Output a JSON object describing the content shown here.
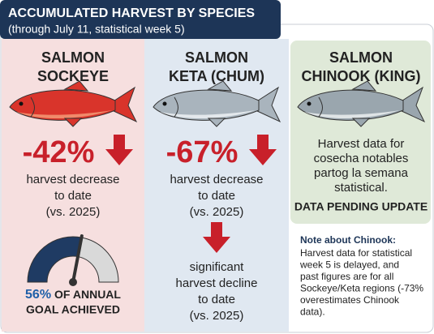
{
  "header": {
    "title": "ACCUMULATED HARVEST BY SPECIES",
    "subtitle": "(through July 11, statistical week 5)"
  },
  "columns": [
    {
      "title": [
        "SALMON",
        "SOCKEYE"
      ],
      "change": "-42%",
      "description": [
        "harvest decrease",
        "to date"
      ],
      "comparison": "(vs. 2025)",
      "gauge": {
        "value": 56,
        "label": "56%",
        "caption": [
          "OF ANNUAL",
          "GOAL ACHIEVED"
        ]
      }
    },
    {
      "title": [
        "SALMON",
        "KETA (CHUM)"
      ],
      "change": "-67%",
      "description": [
        "harvest decrease",
        "to date"
      ],
      "comparison": "(vs. 2025)",
      "detail": [
        "significant",
        "harvest decline",
        "to date"
      ],
      "detail_comparison": "(vs. 2025)"
    },
    {
      "title": [
        "SALMON",
        "CHINOOK (KING)"
      ],
      "message": [
        "Harvest data for",
        "cosecha notables",
        "partog la semana",
        "statistical."
      ],
      "status": "DATA PENDING UPDATE",
      "note_title": "Note about Chinook:",
      "note": [
        "Harvest data for statistical",
        "week 5 is delayed, and",
        "past figures are for all",
        "Sockeye/Keta regions (-73%",
        "overestimates Chinook",
        "data)."
      ]
    }
  ]
}
